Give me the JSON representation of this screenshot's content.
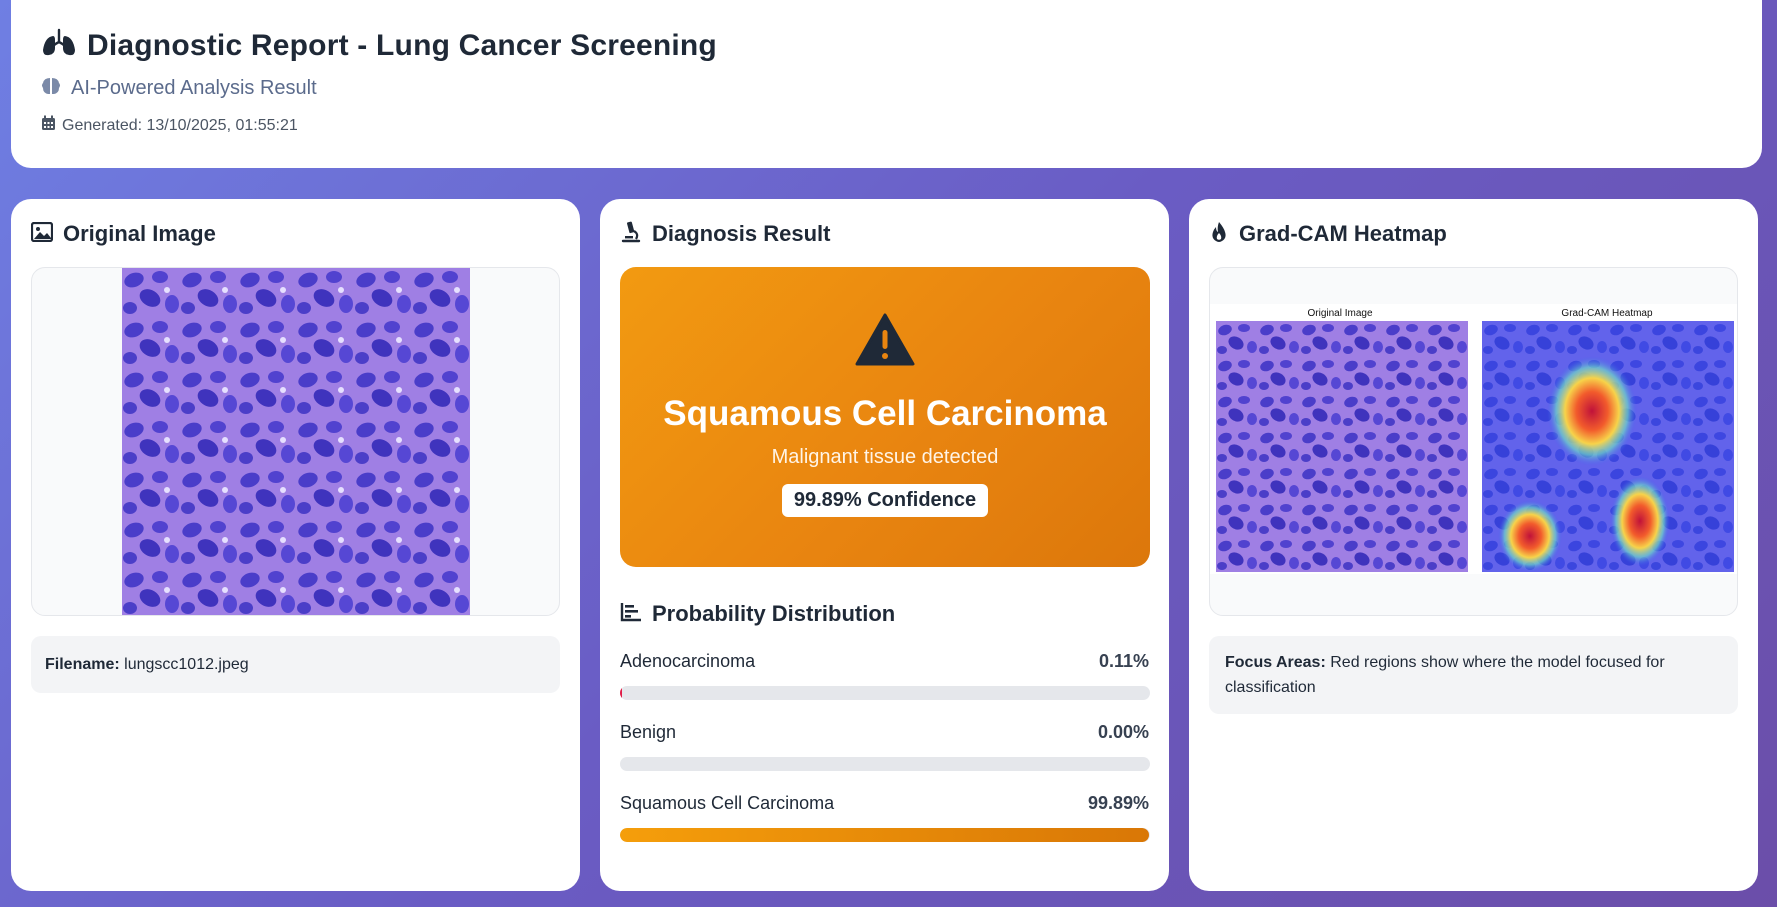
{
  "header": {
    "title": "Diagnostic Report - Lung Cancer Screening",
    "subtitle": "AI-Powered Analysis Result",
    "generated": "Generated: 13/10/2025, 01:55:21"
  },
  "original": {
    "title": "Original Image",
    "filename_label": "Filename:",
    "filename": "lungscc1012.jpeg"
  },
  "diagnosis": {
    "title": "Diagnosis Result",
    "name": "Squamous Cell Carcinoma",
    "description": "Malignant tissue detected",
    "confidence": "99.89% Confidence",
    "color": "#e98510"
  },
  "probability": {
    "title": "Probability Distribution",
    "items": [
      {
        "label": "Adenocarcinoma",
        "value": "0.11%",
        "fraction": 0.0011
      },
      {
        "label": "Benign",
        "value": "0.00%",
        "fraction": 0.0
      },
      {
        "label": "Squamous Cell Carcinoma",
        "value": "99.89%",
        "fraction": 0.9989
      }
    ]
  },
  "gradcam": {
    "title": "Grad-CAM Heatmap",
    "left_label": "Original Image",
    "right_label": "Grad-CAM Heatmap",
    "focus_label": "Focus Areas:",
    "focus_text": "Red regions show where the model focused for classification"
  }
}
